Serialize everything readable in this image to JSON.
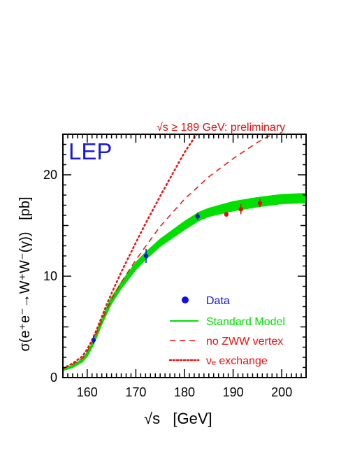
{
  "chart_data": {
    "type": "line",
    "preliminary_note": "√s ≥ 189 GeV: preliminary",
    "panel_label": "LEP",
    "ylabel": "σ(e⁺e⁻→W⁺W⁻(γ))   [pb]",
    "xlabel": "√s   [GeV]",
    "xlim": [
      155,
      205
    ],
    "ylim": [
      0,
      24
    ],
    "x_ticks": [
      160,
      170,
      180,
      190,
      200
    ],
    "y_ticks": [
      0,
      10,
      20
    ],
    "colors": {
      "data_blue": "#1010e0",
      "data_red": "#dd1111",
      "sm_green": "#00e000",
      "alt_red": "#ee1111",
      "frame": "#000000",
      "label_blue": "#1a1ad8"
    },
    "legend": {
      "position": "bottom-right",
      "entries": [
        {
          "label": "Data",
          "style": "dot"
        },
        {
          "label": "Standard Model",
          "style": "solid-green"
        },
        {
          "label": "no ZWW vertex",
          "style": "dashed-red"
        },
        {
          "label": "νₑ exchange",
          "style": "dotted-red"
        }
      ]
    },
    "series": [
      {
        "name": "Data",
        "style": "points",
        "points": [
          {
            "x": 161.3,
            "y": 3.7,
            "err": 0.4,
            "final": true
          },
          {
            "x": 172.1,
            "y": 12.0,
            "err": 0.7,
            "final": true
          },
          {
            "x": 182.7,
            "y": 15.9,
            "err": 0.35,
            "final": true
          },
          {
            "x": 188.6,
            "y": 16.1,
            "err": 0.25,
            "final": false
          },
          {
            "x": 191.6,
            "y": 16.6,
            "err": 0.5,
            "final": false
          },
          {
            "x": 195.5,
            "y": 17.2,
            "err": 0.4,
            "final": false
          }
        ]
      },
      {
        "name": "Standard Model",
        "style": "band",
        "x": [
          155,
          157,
          159,
          160,
          161,
          162,
          163,
          164,
          165,
          167,
          170,
          172,
          175,
          180,
          183,
          185,
          190,
          195,
          200,
          205
        ],
        "y": [
          0.8,
          1.1,
          1.7,
          2.3,
          3.2,
          4.3,
          5.5,
          6.6,
          7.6,
          9.1,
          11.0,
          12.0,
          13.3,
          15.0,
          15.9,
          16.3,
          16.9,
          17.3,
          17.6,
          17.7
        ],
        "halfwidth": [
          0.1,
          0.1,
          0.15,
          0.2,
          0.2,
          0.25,
          0.25,
          0.3,
          0.3,
          0.3,
          0.35,
          0.35,
          0.35,
          0.4,
          0.4,
          0.4,
          0.45,
          0.45,
          0.45,
          0.45
        ]
      },
      {
        "name": "no ZWW vertex",
        "style": "dashed",
        "x": [
          155,
          157,
          159,
          160,
          161,
          162,
          163,
          164,
          165,
          167,
          170,
          173,
          175,
          180,
          185,
          190,
          195,
          198
        ],
        "y": [
          0.9,
          1.3,
          1.9,
          2.6,
          3.5,
          4.5,
          5.6,
          6.7,
          7.7,
          9.4,
          11.6,
          13.6,
          14.9,
          17.6,
          19.8,
          21.6,
          23.2,
          24.0
        ]
      },
      {
        "name": "νₑ exchange",
        "style": "dotted",
        "x": [
          155,
          157,
          159,
          160,
          161,
          162,
          163,
          164,
          165,
          167,
          170,
          172,
          175,
          178,
          180,
          182.5
        ],
        "y": [
          0.9,
          1.4,
          2.1,
          2.8,
          3.7,
          4.8,
          6.0,
          7.2,
          8.3,
          10.4,
          13.3,
          15.2,
          17.9,
          20.5,
          22.2,
          24.0
        ]
      }
    ]
  }
}
